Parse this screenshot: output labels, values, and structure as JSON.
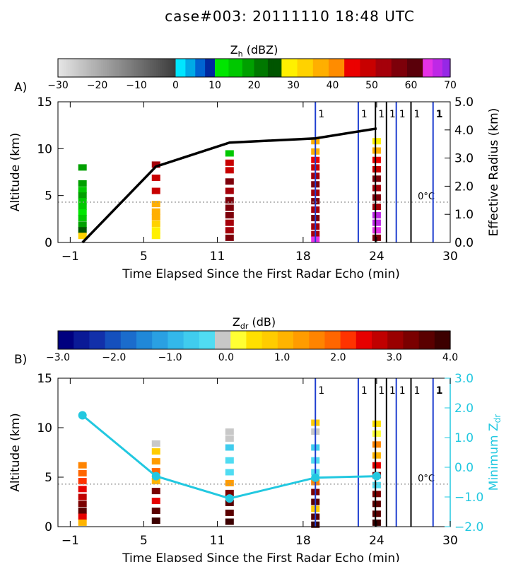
{
  "title": "case#003: 20111110 18:48 UTC",
  "melting_label": "0°C",
  "lightning_label": "1",
  "x_ticks": [
    -1,
    5,
    11,
    18,
    24,
    30
  ],
  "x_tick_labels": [
    "−1",
    "5",
    "11",
    "18",
    "24",
    "30"
  ],
  "xlabel": "Time Elapsed Since the First Radar Echo (min)",
  "lightning_lines": [
    {
      "x": 19.0,
      "color": "#1f3fd0"
    },
    {
      "x": 22.5,
      "color": "#1f3fd0"
    },
    {
      "x": 23.9,
      "color": "#000000"
    },
    {
      "x": 24.8,
      "color": "#000000"
    },
    {
      "x": 25.6,
      "color": "#1f3fd0"
    },
    {
      "x": 26.8,
      "color": "#000000"
    },
    {
      "x": 28.6,
      "color": "#1f3fd0"
    }
  ],
  "chart_data": [
    {
      "panel": "A)",
      "type": "scatter",
      "colorbar": {
        "label": "Z",
        "label_sub": "h",
        "label_unit": " (dBZ)",
        "range": [
          -30,
          70
        ],
        "ticks": [
          -30,
          -20,
          -10,
          0,
          10,
          20,
          30,
          40,
          50,
          60,
          70
        ],
        "tick_labels": [
          "−30",
          "−20",
          "−10",
          "0",
          "10",
          "20",
          "30",
          "40",
          "50",
          "60",
          "70"
        ]
      },
      "ylabel": "Altitude (km)",
      "ylim": [
        0,
        15
      ],
      "yticks": [
        0,
        5,
        10,
        15
      ],
      "y2label": "Effective Radius (km)",
      "y2lim": [
        0,
        5
      ],
      "y2ticks": [
        0.0,
        1.0,
        2.0,
        3.0,
        4.0,
        5.0
      ],
      "y2_tick_labels": [
        "0.0",
        "1.0",
        "2.0",
        "3.0",
        "4.0",
        "5.0"
      ],
      "melting_level": 4.3,
      "profiles": [
        {
          "x": 0,
          "cells": [
            [
              8.0,
              18
            ],
            [
              6.3,
              17
            ],
            [
              5.6,
              14
            ],
            [
              5.0,
              19
            ],
            [
              4.4,
              16
            ],
            [
              3.8,
              14
            ],
            [
              3.2,
              13
            ],
            [
              2.6,
              16
            ],
            [
              1.9,
              20
            ],
            [
              1.3,
              25
            ],
            [
              0.7,
              32
            ]
          ]
        },
        {
          "x": 6,
          "cells": [
            [
              8.3,
              51
            ],
            [
              6.9,
              48
            ],
            [
              5.5,
              47
            ],
            [
              4.1,
              38
            ],
            [
              3.3,
              36
            ],
            [
              2.7,
              35
            ],
            [
              2.0,
              33
            ],
            [
              1.3,
              30
            ],
            [
              0.7,
              28
            ]
          ]
        },
        {
          "x": 12,
          "cells": [
            [
              9.5,
              15
            ],
            [
              8.5,
              50
            ],
            [
              7.7,
              48
            ],
            [
              6.5,
              55
            ],
            [
              5.5,
              52
            ],
            [
              4.5,
              57
            ],
            [
              3.7,
              56
            ],
            [
              2.9,
              58
            ],
            [
              2.1,
              53
            ],
            [
              1.3,
              52
            ],
            [
              0.5,
              55
            ]
          ]
        },
        {
          "x": 19,
          "cells": [
            [
              10.8,
              35
            ],
            [
              9.7,
              38
            ],
            [
              8.8,
              45
            ],
            [
              8.0,
              48
            ],
            [
              7.1,
              52
            ],
            [
              6.2,
              55
            ],
            [
              5.3,
              51
            ],
            [
              4.4,
              56
            ],
            [
              3.5,
              53
            ],
            [
              2.6,
              57
            ],
            [
              1.7,
              54
            ],
            [
              0.9,
              52
            ],
            [
              0.3,
              65
            ]
          ]
        },
        {
          "x": 24,
          "cells": [
            [
              10.8,
              30
            ],
            [
              9.8,
              37
            ],
            [
              8.8,
              45
            ],
            [
              7.8,
              50
            ],
            [
              6.8,
              55
            ],
            [
              5.8,
              52
            ],
            [
              4.8,
              57
            ],
            [
              3.8,
              53
            ],
            [
              2.9,
              66
            ],
            [
              2.1,
              67
            ],
            [
              1.3,
              65
            ],
            [
              0.5,
              58
            ]
          ]
        }
      ],
      "line": {
        "name": "Effective Radius",
        "x": [
          0,
          6,
          12,
          19,
          24
        ],
        "y": [
          0.0,
          2.7,
          3.55,
          3.7,
          4.05
        ],
        "color": "#000000"
      }
    },
    {
      "panel": "B)",
      "type": "scatter",
      "colorbar": {
        "label": "Z",
        "label_sub": "dr",
        "label_unit": " (dB)",
        "range": [
          -3.0,
          4.0
        ],
        "ticks": [
          -3.0,
          -2.0,
          -1.0,
          0.0,
          1.0,
          2.0,
          3.0,
          4.0
        ],
        "tick_labels": [
          "−3.0",
          "−2.0",
          "−1.0",
          "0.0",
          "1.0",
          "2.0",
          "3.0",
          "4.0"
        ]
      },
      "ylabel": "Altitude (km)",
      "ylim": [
        0,
        15
      ],
      "yticks": [
        0,
        5,
        10,
        15
      ],
      "y2label": "Minimum Z",
      "y2label_sub": "dr",
      "y2lim": [
        -2.0,
        3.0
      ],
      "y2ticks": [
        -2.0,
        -1.0,
        0.0,
        1.0,
        2.0,
        3.0
      ],
      "y2_tick_labels": [
        "−2.0",
        "−1.0",
        "0.0",
        "1.0",
        "2.0",
        "3.0"
      ],
      "melting_level": 4.3,
      "profiles": [
        {
          "x": 0,
          "cells": [
            [
              6.2,
              1.5
            ],
            [
              5.4,
              1.8
            ],
            [
              4.6,
              2.2
            ],
            [
              3.8,
              2.4
            ],
            [
              3.0,
              2.8
            ],
            [
              2.3,
              3.3
            ],
            [
              1.6,
              3.6
            ],
            [
              1.0,
              2.6
            ],
            [
              0.4,
              1.0
            ]
          ]
        },
        {
          "x": 6,
          "cells": [
            [
              8.4,
              0.0
            ],
            [
              7.6,
              0.8
            ],
            [
              6.6,
              1.3
            ],
            [
              5.6,
              1.8
            ],
            [
              4.6,
              1.0
            ],
            [
              3.6,
              3.3
            ],
            [
              2.6,
              2.4
            ],
            [
              1.6,
              3.7
            ],
            [
              0.6,
              3.8
            ]
          ]
        },
        {
          "x": 12,
          "cells": [
            [
              9.6,
              -0.1
            ],
            [
              8.9,
              -0.1
            ],
            [
              8.0,
              -0.6
            ],
            [
              6.7,
              -0.3
            ],
            [
              5.5,
              -0.4
            ],
            [
              4.4,
              1.2
            ],
            [
              3.4,
              3.3
            ],
            [
              2.4,
              3.6
            ],
            [
              1.4,
              3.7
            ],
            [
              0.5,
              3.8
            ]
          ]
        },
        {
          "x": 19,
          "cells": [
            [
              10.5,
              0.9
            ],
            [
              9.6,
              0.0
            ],
            [
              8.0,
              -0.6
            ],
            [
              6.7,
              -0.3
            ],
            [
              5.5,
              -0.4
            ],
            [
              4.5,
              1.5
            ],
            [
              3.5,
              3.2
            ],
            [
              2.5,
              3.5
            ],
            [
              1.8,
              0.7
            ],
            [
              1.0,
              3.6
            ],
            [
              0.2,
              3.8
            ]
          ]
        },
        {
          "x": 24,
          "cells": [
            [
              10.4,
              0.6
            ],
            [
              9.4,
              0.1
            ],
            [
              8.3,
              1.5
            ],
            [
              7.2,
              1.0
            ],
            [
              6.2,
              2.4
            ],
            [
              5.2,
              3.3
            ],
            [
              4.2,
              -0.3
            ],
            [
              3.3,
              3.4
            ],
            [
              2.3,
              3.6
            ],
            [
              1.3,
              3.7
            ],
            [
              0.4,
              3.8
            ]
          ]
        }
      ],
      "line": {
        "name": "Minimum Zdr",
        "x": [
          0,
          6,
          12,
          19,
          24
        ],
        "y": [
          1.75,
          -0.3,
          -1.05,
          -0.35,
          -0.3
        ],
        "color": "#22c8e0"
      }
    }
  ]
}
